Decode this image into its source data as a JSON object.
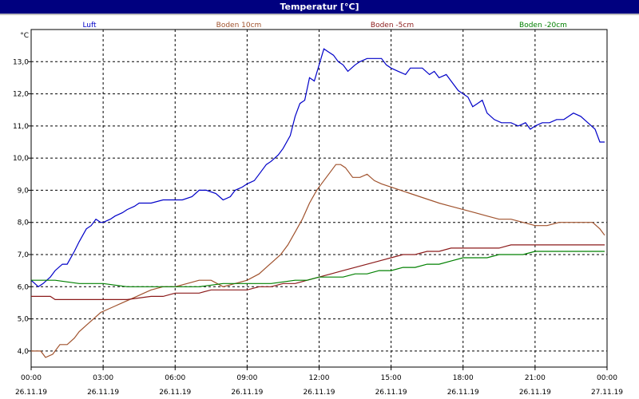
{
  "window": {
    "title": "Temperatur [°C]"
  },
  "chart_data": {
    "type": "line",
    "title": "Temperatur [°C]",
    "yunit": "°C",
    "ylim": [
      3.5,
      14.0
    ],
    "yticks": [
      "4,0",
      "5,0",
      "6,0",
      "7,0",
      "8,0",
      "9,0",
      "10,0",
      "11,0",
      "12,0",
      "13,0"
    ],
    "yticks_values": [
      4,
      5,
      6,
      7,
      8,
      9,
      10,
      11,
      12,
      13
    ],
    "xlim": [
      0,
      24
    ],
    "xticks": [
      {
        "value": 0,
        "time": "00:00",
        "date": "26.11.19"
      },
      {
        "value": 3,
        "time": "03:00",
        "date": "26.11.19"
      },
      {
        "value": 6,
        "time": "06:00",
        "date": "26.11.19"
      },
      {
        "value": 9,
        "time": "09:00",
        "date": "26.11.19"
      },
      {
        "value": 12,
        "time": "12:00",
        "date": "26.11.19"
      },
      {
        "value": 15,
        "time": "15:00",
        "date": "26.11.19"
      },
      {
        "value": 18,
        "time": "18:00",
        "date": "26.11.19"
      },
      {
        "value": 21,
        "time": "21:00",
        "date": "26.11.19"
      },
      {
        "value": 24,
        "time": "00:00",
        "date": "27.11.19"
      }
    ],
    "grid": true,
    "legend_position": "top",
    "series": [
      {
        "name": "Luft",
        "color": "#0000c8",
        "x": [
          0,
          0.3,
          0.5,
          0.8,
          1.0,
          1.3,
          1.5,
          1.8,
          2.0,
          2.3,
          2.5,
          2.7,
          2.9,
          3.0,
          3.3,
          3.5,
          3.8,
          4.0,
          4.3,
          4.5,
          4.8,
          5.0,
          5.5,
          6.0,
          6.3,
          6.7,
          7.0,
          7.3,
          7.7,
          8.0,
          8.3,
          8.5,
          8.8,
          9.0,
          9.3,
          9.5,
          9.8,
          10.0,
          10.3,
          10.5,
          10.8,
          11.0,
          11.2,
          11.4,
          11.6,
          11.8,
          12.0,
          12.2,
          12.4,
          12.6,
          12.8,
          13.0,
          13.2,
          13.5,
          13.7,
          14.0,
          14.3,
          14.6,
          14.8,
          15.0,
          15.3,
          15.6,
          15.8,
          16.0,
          16.3,
          16.6,
          16.8,
          17.0,
          17.3,
          17.5,
          17.8,
          18.0,
          18.2,
          18.4,
          18.6,
          18.8,
          19.0,
          19.3,
          19.6,
          19.8,
          20.0,
          20.3,
          20.6,
          20.8,
          21.0,
          21.3,
          21.6,
          21.9,
          22.2,
          22.4,
          22.6,
          22.9,
          23.2,
          23.5,
          23.7,
          23.9
        ],
        "values": [
          6.2,
          6.0,
          6.1,
          6.3,
          6.5,
          6.7,
          6.7,
          7.1,
          7.4,
          7.8,
          7.9,
          8.1,
          8.0,
          8.0,
          8.1,
          8.2,
          8.3,
          8.4,
          8.5,
          8.6,
          8.6,
          8.6,
          8.7,
          8.7,
          8.7,
          8.8,
          9.0,
          9.0,
          8.9,
          8.7,
          8.8,
          9.0,
          9.1,
          9.2,
          9.3,
          9.5,
          9.8,
          9.9,
          10.1,
          10.3,
          10.7,
          11.3,
          11.7,
          11.8,
          12.5,
          12.4,
          12.9,
          13.4,
          13.3,
          13.2,
          13.0,
          12.9,
          12.7,
          12.9,
          13.0,
          13.1,
          13.1,
          13.1,
          12.9,
          12.8,
          12.7,
          12.6,
          12.8,
          12.8,
          12.8,
          12.6,
          12.7,
          12.5,
          12.6,
          12.4,
          12.1,
          12.0,
          11.9,
          11.6,
          11.7,
          11.8,
          11.4,
          11.2,
          11.1,
          11.1,
          11.1,
          11.0,
          11.1,
          10.9,
          11.0,
          11.1,
          11.1,
          11.2,
          11.2,
          11.3,
          11.4,
          11.3,
          11.1,
          10.9,
          10.5,
          10.5
        ]
      },
      {
        "name": "Boden 10cm",
        "color": "#a0522d",
        "x": [
          0,
          0.4,
          0.6,
          0.9,
          1.2,
          1.5,
          1.8,
          2.0,
          2.3,
          2.6,
          2.9,
          3.2,
          3.5,
          3.8,
          4.1,
          4.4,
          4.7,
          5.0,
          5.5,
          6.0,
          6.5,
          7.0,
          7.5,
          8.0,
          8.5,
          9.0,
          9.5,
          9.8,
          10.1,
          10.4,
          10.7,
          11.0,
          11.3,
          11.6,
          11.9,
          12.2,
          12.5,
          12.7,
          12.9,
          13.1,
          13.4,
          13.7,
          14.0,
          14.3,
          14.6,
          15.0,
          15.4,
          15.8,
          16.2,
          16.6,
          17.0,
          17.5,
          18.0,
          18.5,
          19.0,
          19.5,
          20.0,
          20.5,
          21.0,
          21.5,
          22.0,
          22.5,
          23.0,
          23.4,
          23.7,
          23.9
        ],
        "values": [
          4.0,
          4.0,
          3.8,
          3.9,
          4.2,
          4.2,
          4.4,
          4.6,
          4.8,
          5.0,
          5.2,
          5.3,
          5.4,
          5.5,
          5.6,
          5.7,
          5.8,
          5.9,
          6.0,
          6.0,
          6.1,
          6.2,
          6.2,
          6.0,
          6.1,
          6.2,
          6.4,
          6.6,
          6.8,
          7.0,
          7.3,
          7.7,
          8.1,
          8.6,
          9.0,
          9.3,
          9.6,
          9.8,
          9.8,
          9.7,
          9.4,
          9.4,
          9.5,
          9.3,
          9.2,
          9.1,
          9.0,
          8.9,
          8.8,
          8.7,
          8.6,
          8.5,
          8.4,
          8.3,
          8.2,
          8.1,
          8.1,
          8.0,
          7.9,
          7.9,
          8.0,
          8.0,
          8.0,
          8.0,
          7.8,
          7.6
        ]
      },
      {
        "name": "Boden -5cm",
        "color": "#8b1a1a",
        "x": [
          0,
          0.8,
          1.0,
          2.0,
          3.0,
          4.0,
          5.0,
          5.5,
          6.0,
          6.5,
          7.0,
          7.5,
          8.0,
          8.5,
          9.0,
          9.5,
          10.0,
          10.5,
          11.0,
          11.5,
          12.0,
          12.5,
          13.0,
          13.5,
          14.0,
          14.5,
          15.0,
          15.5,
          16.0,
          16.5,
          17.0,
          17.5,
          18.0,
          18.5,
          19.0,
          19.5,
          20.0,
          20.5,
          21.0,
          22.0,
          23.0,
          23.9
        ],
        "values": [
          5.7,
          5.7,
          5.6,
          5.6,
          5.6,
          5.6,
          5.7,
          5.7,
          5.8,
          5.8,
          5.8,
          5.9,
          5.9,
          5.9,
          5.9,
          6.0,
          6.0,
          6.1,
          6.1,
          6.2,
          6.3,
          6.4,
          6.5,
          6.6,
          6.7,
          6.8,
          6.9,
          7.0,
          7.0,
          7.1,
          7.1,
          7.2,
          7.2,
          7.2,
          7.2,
          7.2,
          7.3,
          7.3,
          7.3,
          7.3,
          7.3,
          7.3
        ]
      },
      {
        "name": "Boden -20cm",
        "color": "#008000",
        "x": [
          0,
          1.0,
          2.0,
          3.0,
          4.0,
          5.0,
          6.0,
          7.0,
          8.0,
          9.0,
          10.0,
          11.0,
          11.5,
          12.0,
          12.5,
          13.0,
          13.5,
          14.0,
          14.5,
          15.0,
          15.5,
          16.0,
          16.5,
          17.0,
          17.5,
          18.0,
          18.5,
          19.0,
          19.5,
          20.0,
          20.5,
          21.0,
          22.0,
          23.0,
          23.9
        ],
        "values": [
          6.2,
          6.2,
          6.1,
          6.1,
          6.0,
          6.0,
          6.0,
          6.0,
          6.1,
          6.1,
          6.1,
          6.2,
          6.2,
          6.3,
          6.3,
          6.3,
          6.4,
          6.4,
          6.5,
          6.5,
          6.6,
          6.6,
          6.7,
          6.7,
          6.8,
          6.9,
          6.9,
          6.9,
          7.0,
          7.0,
          7.0,
          7.1,
          7.1,
          7.1,
          7.1
        ]
      }
    ]
  }
}
